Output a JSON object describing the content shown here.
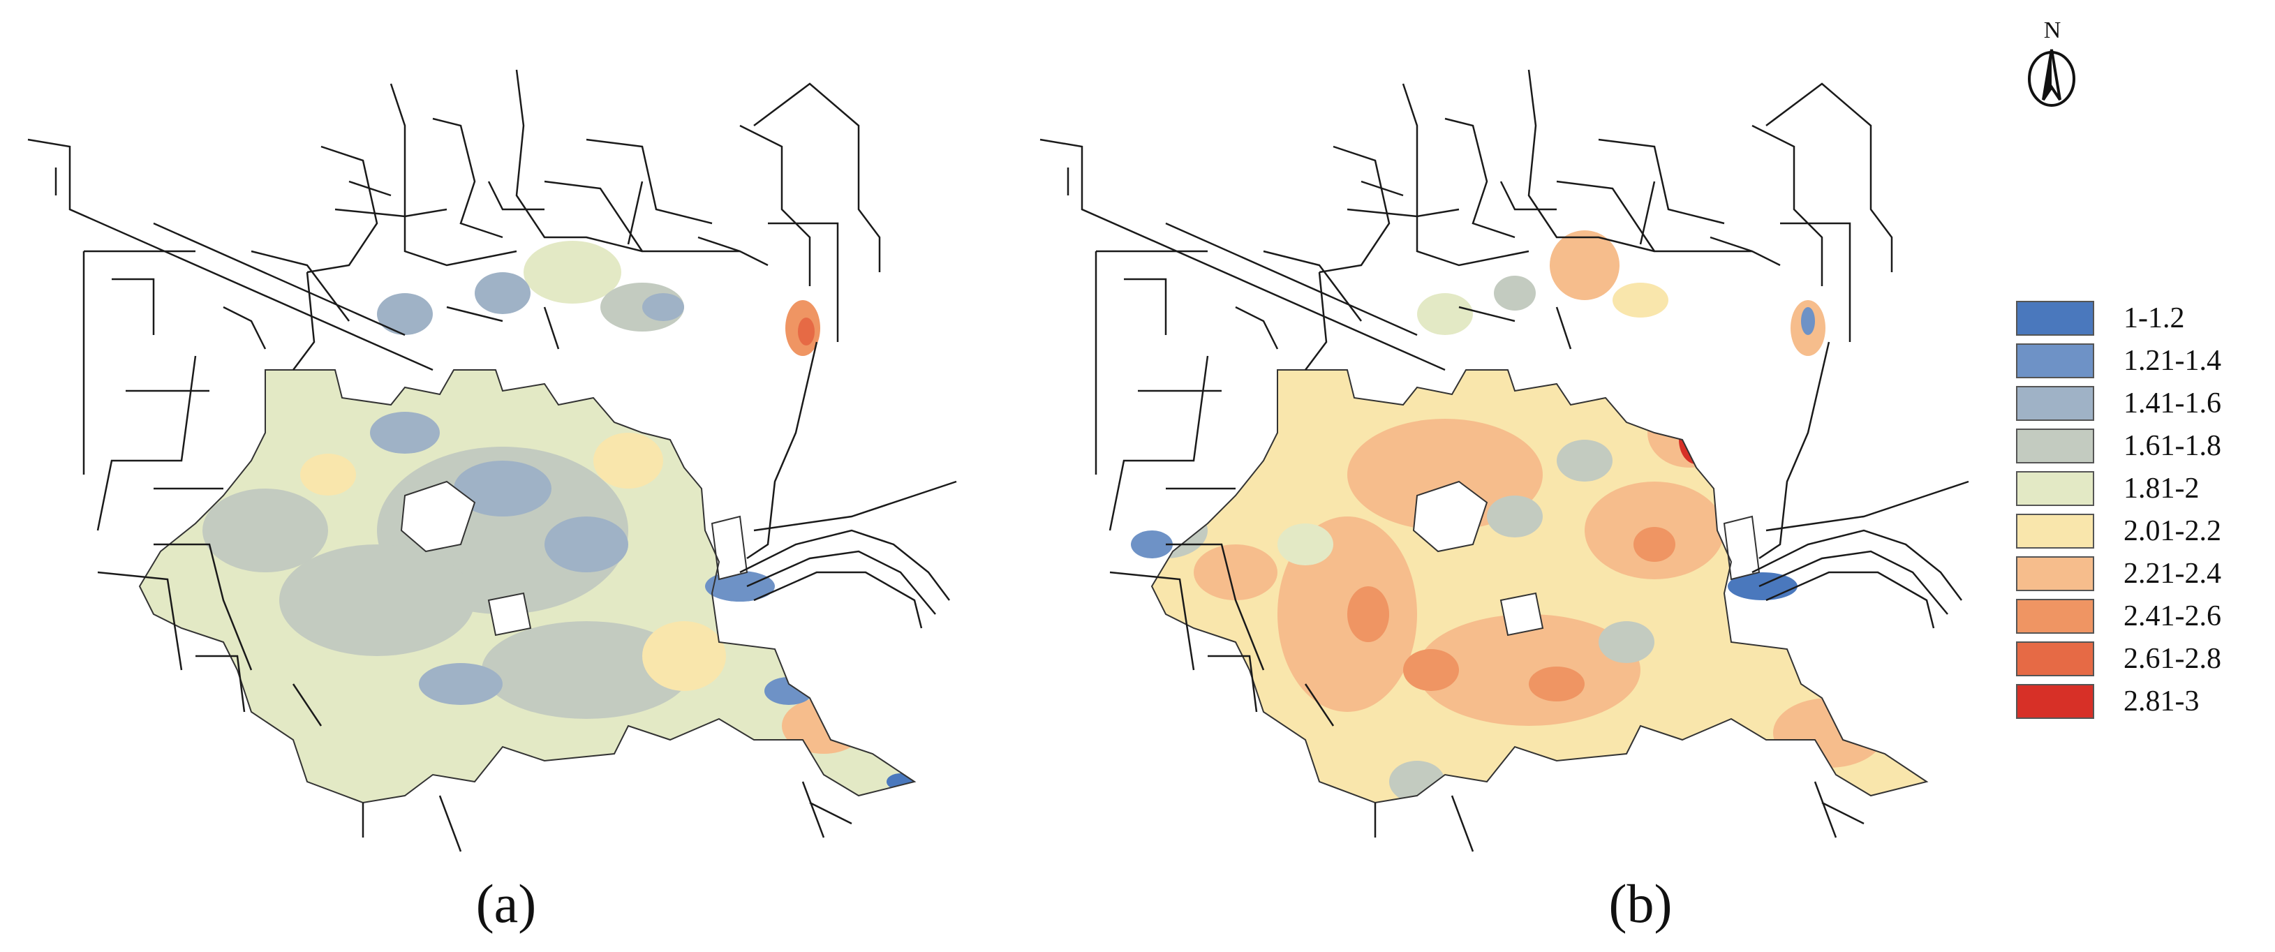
{
  "panels": [
    {
      "id": "a",
      "label": "(a)"
    },
    {
      "id": "b",
      "label": "(b)"
    }
  ],
  "north_arrow": {
    "letter": "N"
  },
  "legend": {
    "items": [
      {
        "label": "1-1.2",
        "color": "#4a78bd"
      },
      {
        "label": "1.21-1.4",
        "color": "#6e92c6"
      },
      {
        "label": "1.41-1.6",
        "color": "#9fb2c6"
      },
      {
        "label": "1.61-1.8",
        "color": "#c3cbc0"
      },
      {
        "label": "1.81-2",
        "color": "#e3e9c5"
      },
      {
        "label": "2.01-2.2",
        "color": "#f9e6ac"
      },
      {
        "label": "2.21-2.4",
        "color": "#f6bd8c"
      },
      {
        "label": "2.41-2.6",
        "color": "#ef9563"
      },
      {
        "label": "2.61-2.8",
        "color": "#e66a45"
      },
      {
        "label": "2.81-3",
        "color": "#d73027"
      }
    ]
  },
  "colors": {
    "network_line": "#1a1a1a",
    "background": "#ffffff"
  }
}
